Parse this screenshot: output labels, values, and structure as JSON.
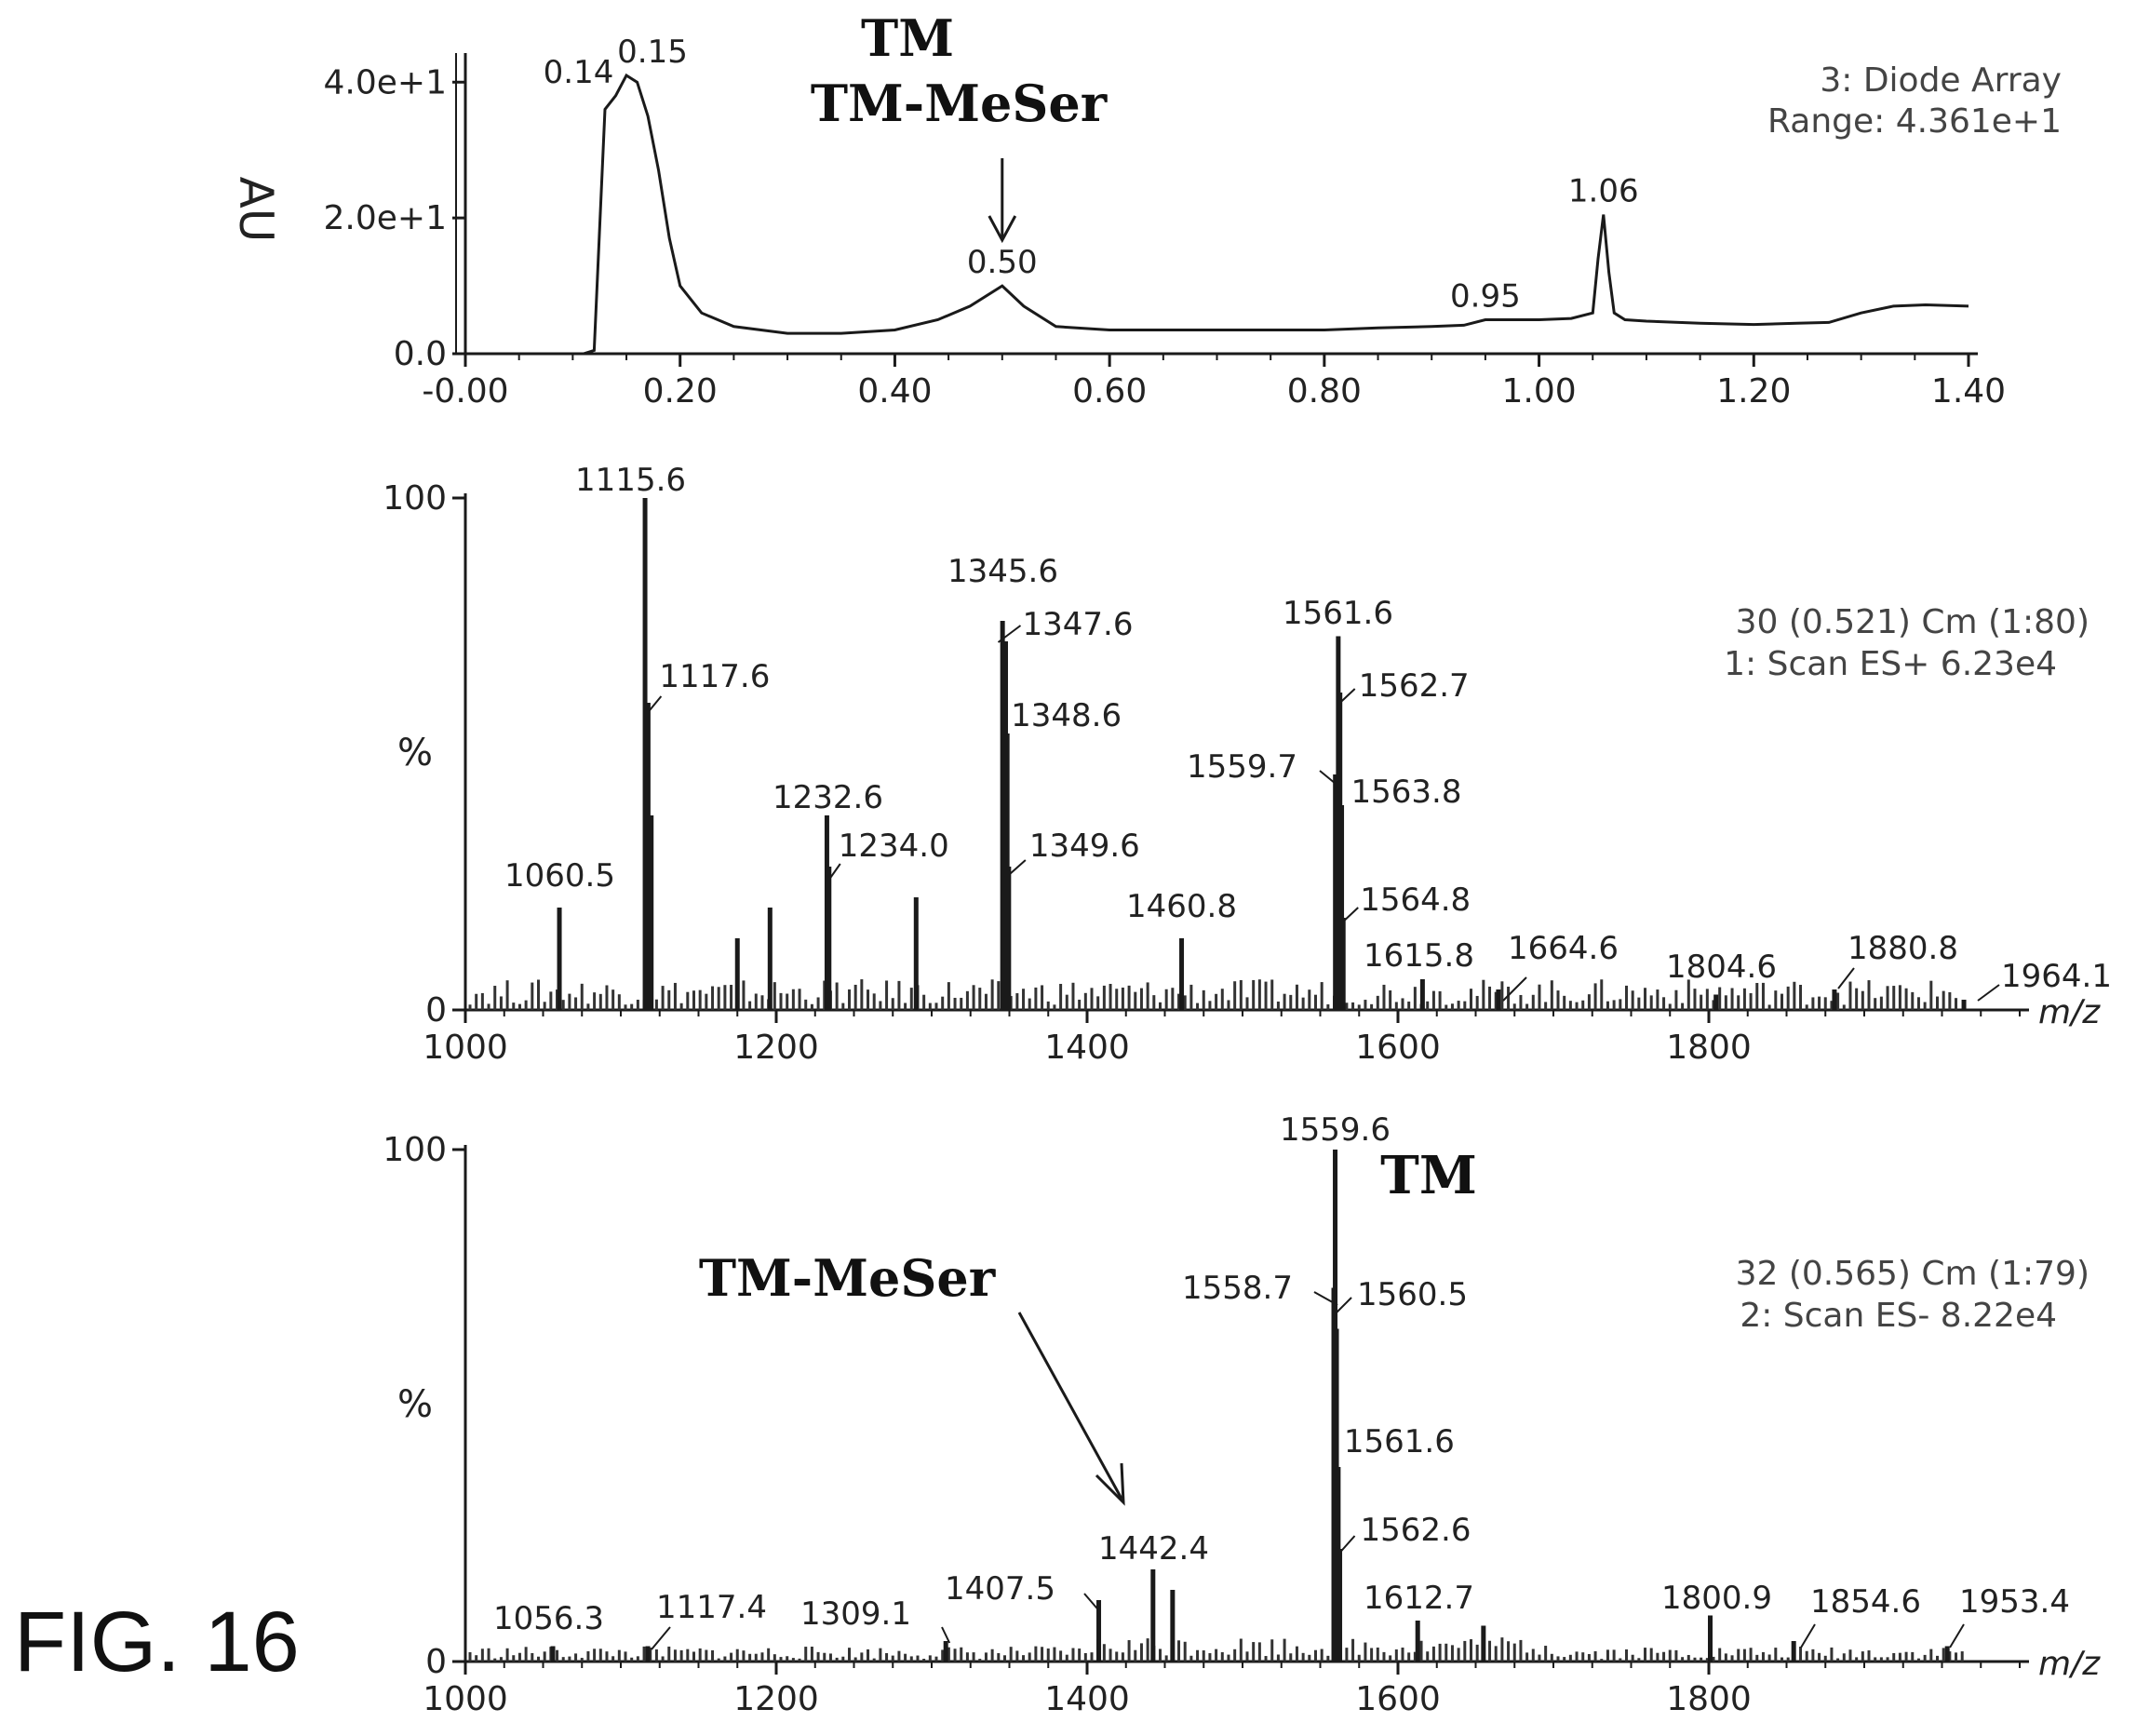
{
  "figure_label": "FIG. 16",
  "chart_data": [
    {
      "type": "line",
      "panel": "chromatogram",
      "ylabel": "AU",
      "info_lines": [
        "3: Diode Array",
        "Range: 4.361e+1"
      ],
      "title_lines": [
        "TM",
        "TM-MeSer"
      ],
      "arrow_target": 0.5,
      "xlim": [
        0.0,
        1.4
      ],
      "ylim": [
        0,
        43.6
      ],
      "x_ticks": [
        {
          "v": 0.0,
          "t": "-0.00"
        },
        {
          "v": 0.2,
          "t": "0.20"
        },
        {
          "v": 0.4,
          "t": "0.40"
        },
        {
          "v": 0.6,
          "t": "0.60"
        },
        {
          "v": 0.8,
          "t": "0.80"
        },
        {
          "v": 1.0,
          "t": "1.00"
        },
        {
          "v": 1.2,
          "t": "1.20"
        },
        {
          "v": 1.4,
          "t": "1.40"
        }
      ],
      "y_ticks": [
        {
          "v": 0,
          "t": "0.0"
        },
        {
          "v": 20,
          "t": "2.0e+1"
        },
        {
          "v": 40,
          "t": "4.0e+1"
        }
      ],
      "x": [
        0.0,
        0.11,
        0.12,
        0.13,
        0.14,
        0.15,
        0.16,
        0.17,
        0.18,
        0.19,
        0.2,
        0.22,
        0.25,
        0.3,
        0.35,
        0.4,
        0.44,
        0.47,
        0.5,
        0.52,
        0.55,
        0.6,
        0.7,
        0.8,
        0.85,
        0.9,
        0.93,
        0.95,
        0.97,
        1.0,
        1.03,
        1.05,
        1.055,
        1.06,
        1.065,
        1.07,
        1.08,
        1.1,
        1.15,
        1.2,
        1.24,
        1.27,
        1.3,
        1.33,
        1.36,
        1.4
      ],
      "y": [
        0,
        0,
        0.5,
        36,
        38,
        41,
        40,
        35,
        27,
        17,
        10,
        6,
        4,
        3,
        3,
        3.5,
        5,
        7,
        10,
        7,
        4,
        3.5,
        3.5,
        3.5,
        3.8,
        4,
        4.2,
        5,
        5,
        5,
        5.2,
        6,
        14,
        20.5,
        12,
        6,
        5,
        4.8,
        4.5,
        4.3,
        4.5,
        4.6,
        6,
        7,
        7.2,
        7
      ],
      "peak_labels": [
        {
          "x": 0.14,
          "y": 38,
          "t": "0.14"
        },
        {
          "x": 0.15,
          "y": 41,
          "t": "0.15"
        },
        {
          "x": 0.5,
          "y": 10,
          "t": "0.50"
        },
        {
          "x": 0.95,
          "y": 5,
          "t": "0.95"
        },
        {
          "x": 1.06,
          "y": 20.5,
          "t": "1.06"
        }
      ]
    },
    {
      "type": "bar",
      "panel": "spectrum-positive",
      "ylabel": "%",
      "info_lines": [
        "30 (0.521) Cm (1:80)",
        "1: Scan ES+ 6.23e4"
      ],
      "xlabel": "m/z",
      "xlim": [
        1000,
        2000
      ],
      "ylim": [
        0,
        100
      ],
      "x_ticks": [
        {
          "v": 1000,
          "t": "1000"
        },
        {
          "v": 1200,
          "t": "1200"
        },
        {
          "v": 1400,
          "t": "1400"
        },
        {
          "v": 1600,
          "t": "1600"
        },
        {
          "v": 1800,
          "t": "1800"
        }
      ],
      "y_ticks": [
        {
          "v": 0,
          "t": "0"
        },
        {
          "v": 100,
          "t": "100"
        }
      ],
      "peaks": [
        {
          "mz": 1060.5,
          "i": 20,
          "label": "1060.5"
        },
        {
          "mz": 1115.6,
          "i": 100,
          "label": "1115.6"
        },
        {
          "mz": 1117.6,
          "i": 60,
          "label": "1117.6"
        },
        {
          "mz": 1119.6,
          "i": 38
        },
        {
          "mz": 1175,
          "i": 14
        },
        {
          "mz": 1196,
          "i": 20
        },
        {
          "mz": 1232.6,
          "i": 38,
          "label": "1232.6"
        },
        {
          "mz": 1234.0,
          "i": 28,
          "label": "1234.0"
        },
        {
          "mz": 1290,
          "i": 22
        },
        {
          "mz": 1345.6,
          "i": 76,
          "label": "1345.6"
        },
        {
          "mz": 1347.6,
          "i": 72,
          "label": "1347.6"
        },
        {
          "mz": 1348.6,
          "i": 54,
          "label": "1348.6"
        },
        {
          "mz": 1349.6,
          "i": 28,
          "label": "1349.6"
        },
        {
          "mz": 1460.8,
          "i": 14,
          "label": "1460.8"
        },
        {
          "mz": 1561.6,
          "i": 73,
          "label": "1561.6"
        },
        {
          "mz": 1562.7,
          "i": 62,
          "label": "1562.7"
        },
        {
          "mz": 1559.7,
          "i": 46,
          "label": "1559.7"
        },
        {
          "mz": 1563.8,
          "i": 40,
          "label": "1563.8"
        },
        {
          "mz": 1564.8,
          "i": 18,
          "label": "1564.8"
        },
        {
          "mz": 1615.8,
          "i": 6,
          "label": "1615.8"
        },
        {
          "mz": 1664.6,
          "i": 4,
          "label": "1664.6"
        },
        {
          "mz": 1804.6,
          "i": 3,
          "label": "1804.6"
        },
        {
          "mz": 1880.8,
          "i": 4,
          "label": "1880.8"
        },
        {
          "mz": 1964.1,
          "i": 2,
          "label": "1964.1"
        }
      ]
    },
    {
      "type": "bar",
      "panel": "spectrum-negative",
      "ylabel": "%",
      "info_lines": [
        "32 (0.565) Cm (1:79)",
        "2: Scan ES- 8.22e4"
      ],
      "xlabel": "m/z",
      "annotations": [
        {
          "text": "TM",
          "target": 1559.6
        },
        {
          "text": "TM-MeSer",
          "target": 1442.4
        }
      ],
      "xlim": [
        1000,
        2000
      ],
      "ylim": [
        0,
        100
      ],
      "x_ticks": [
        {
          "v": 1000,
          "t": "1000"
        },
        {
          "v": 1200,
          "t": "1200"
        },
        {
          "v": 1400,
          "t": "1400"
        },
        {
          "v": 1600,
          "t": "1600"
        },
        {
          "v": 1800,
          "t": "1800"
        }
      ],
      "y_ticks": [
        {
          "v": 0,
          "t": "0"
        },
        {
          "v": 100,
          "t": "100"
        }
      ],
      "peaks": [
        {
          "mz": 1056.3,
          "i": 3,
          "label": "1056.3"
        },
        {
          "mz": 1117.4,
          "i": 3,
          "label": "1117.4"
        },
        {
          "mz": 1309.1,
          "i": 4,
          "label": "1309.1"
        },
        {
          "mz": 1407.5,
          "i": 12,
          "label": "1407.5"
        },
        {
          "mz": 1442.4,
          "i": 18,
          "label": "1442.4"
        },
        {
          "mz": 1455,
          "i": 14
        },
        {
          "mz": 1559.6,
          "i": 100,
          "label": "1559.6"
        },
        {
          "mz": 1558.7,
          "i": 73,
          "label": "1558.7"
        },
        {
          "mz": 1560.5,
          "i": 65,
          "label": "1560.5"
        },
        {
          "mz": 1561.6,
          "i": 38,
          "label": "1561.6"
        },
        {
          "mz": 1562.6,
          "i": 22,
          "label": "1562.6"
        },
        {
          "mz": 1612.7,
          "i": 8,
          "label": "1612.7"
        },
        {
          "mz": 1655,
          "i": 7
        },
        {
          "mz": 1800.9,
          "i": 9,
          "label": "1800.9"
        },
        {
          "mz": 1854.6,
          "i": 4,
          "label": "1854.6"
        },
        {
          "mz": 1953.4,
          "i": 3,
          "label": "1953.4"
        }
      ]
    }
  ]
}
